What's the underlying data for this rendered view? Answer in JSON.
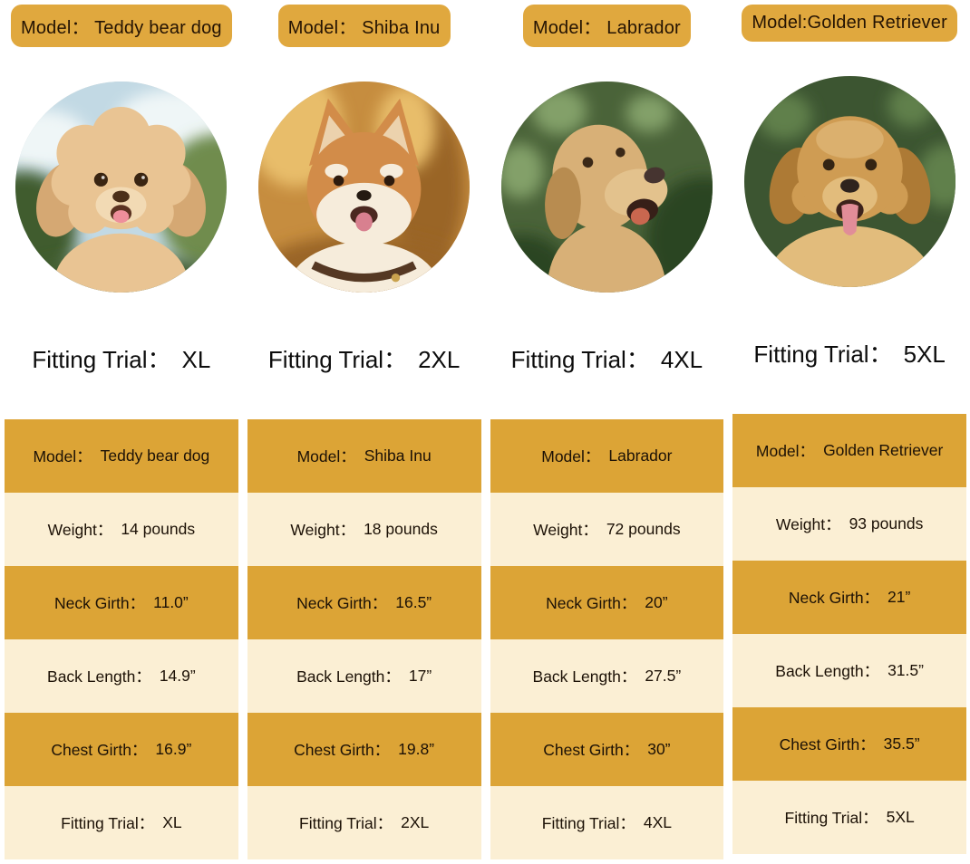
{
  "colors": {
    "badge_gold": "#e0a83e",
    "row_gold": "#dca436",
    "row_cream": "#fbefd4",
    "text_dark": "#241303"
  },
  "fitting_label": "Fitting Trial：",
  "row_labels": [
    "Model：",
    "Weight：",
    "Neck Girth：",
    "Back Length：",
    "Chest Girth：",
    "Fitting Trial："
  ],
  "columns": [
    {
      "slug": "teddy-bear-dog",
      "breed": "teddy",
      "badge_text": "Model： Teddy bear dog",
      "fitting_value": "XL",
      "table_values": [
        "Teddy bear dog",
        "14 pounds",
        "11.0”",
        "14.9”",
        "16.9”",
        "XL"
      ],
      "photo": {
        "description": "circular photo of cream curly teddy bear dog outdoors, sky and greenery",
        "palette": {
          "sky": "#c2d9e4",
          "cloud": "#eff6f7",
          "leaf": "#6f8c4d",
          "leafDark": "#3f5c2e",
          "fur": "#e9c493",
          "furDark": "#d5a873",
          "muzzle": "#f2dab4",
          "eye": "#3a2512",
          "nose": "#4b2f19",
          "mouth": "#5c3322",
          "tongue": "#ee8f9b"
        }
      }
    },
    {
      "slug": "shiba-inu",
      "breed": "shiba",
      "badge_text": "Model： Shiba Inu",
      "fitting_value": "2XL",
      "table_values": [
        "Shiba Inu",
        "18 pounds",
        "16.5”",
        "17”",
        "19.8”",
        "2XL"
      ],
      "photo": {
        "description": "circular photo of smiling orange shiba inu on warm amber background",
        "palette": {
          "bg": "#c68d3f",
          "bgLight": "#e8bd6a",
          "bgDark": "#9a6527",
          "fur": "#d28c49",
          "inner": "#ecd2ad",
          "cheek": "#f6ecdb",
          "eye": "#2d1b0e",
          "nose": "#241a12",
          "mouth": "#4b2820",
          "tongue": "#d8808f",
          "collar": "#553823"
        }
      }
    },
    {
      "slug": "labrador",
      "breed": "lab",
      "badge_text": "Model： Labrador",
      "fitting_value": "4XL",
      "table_values": [
        "Labrador",
        "72 pounds",
        "20”",
        "27.5”",
        "30”",
        "4XL"
      ],
      "photo": {
        "description": "circular photo of yellow labrador looking up, dark green bokeh background",
        "palette": {
          "bg": "#4a6339",
          "bgLight": "#83a069",
          "bgDark": "#2c4423",
          "fur": "#d8b077",
          "furLight": "#e3c28d",
          "furShadow": "#b88c50",
          "eye": "#3a2817",
          "nose": "#463430",
          "mouth": "#371f18",
          "tongue": "#c9674f"
        }
      }
    },
    {
      "slug": "golden-retriever",
      "breed": "golden",
      "badge_text": "Model:Golden Retriever",
      "fitting_value": "5XL",
      "table_values": [
        "Golden Retriever",
        "93 pounds",
        "21”",
        "31.5”",
        "35.5”",
        "5XL"
      ],
      "photo": {
        "description": "circular photo of golden retriever with tongue out, dark green background",
        "palette": {
          "bg": "#3c5531",
          "bgLight": "#60804c",
          "fur": "#cf9c53",
          "furLight": "#e2bc7c",
          "earDark": "#ad7a35",
          "eye": "#342413",
          "nose": "#2e231d",
          "mouth": "#3d221b",
          "tongue": "#e18d98"
        }
      }
    }
  ]
}
